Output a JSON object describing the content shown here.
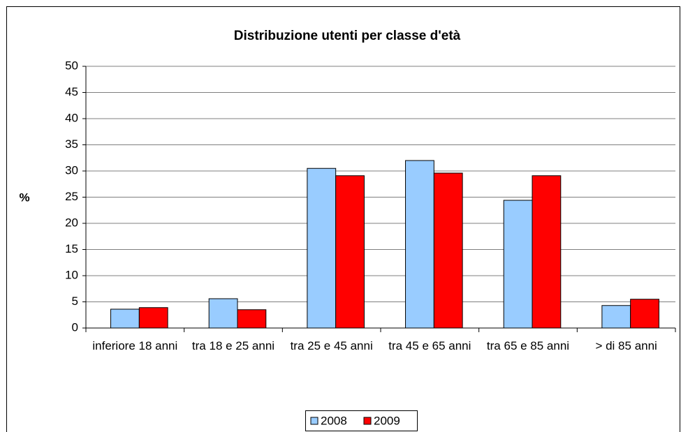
{
  "chart_data": {
    "type": "bar",
    "title": "Distribuzione utenti per classe d'età",
    "y_label": "%",
    "categories": [
      "inferiore 18 anni",
      "tra 18 e 25 anni",
      "tra 25 e 45 anni",
      "tra 45 e 65 anni",
      "tra 65 e 85 anni",
      "> di 85 anni"
    ],
    "series": [
      {
        "name": "2008",
        "color": "#99ccff",
        "values": [
          3.6,
          5.6,
          30.5,
          32,
          24.4,
          4.3
        ]
      },
      {
        "name": "2009",
        "color": "#ff0000",
        "values": [
          3.9,
          3.5,
          29.1,
          29.6,
          29.1,
          5.5
        ]
      }
    ],
    "ylim": [
      0,
      50
    ],
    "yticks": [
      0,
      5,
      10,
      15,
      20,
      25,
      30,
      35,
      40,
      45,
      50
    ],
    "grid": true,
    "legend": "bottom"
  }
}
